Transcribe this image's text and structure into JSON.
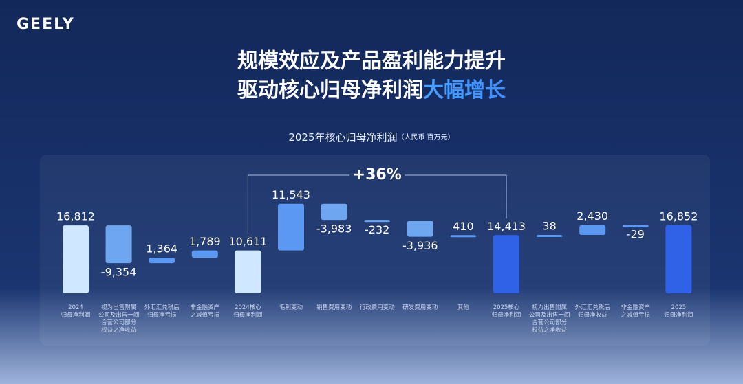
{
  "logo": "GEELY",
  "headline": {
    "line1": "规模效应及产品盈利能力提升",
    "line2": "驱动核心归母净利润",
    "highlight": "大幅增长"
  },
  "chart_data": {
    "type": "waterfall",
    "title": "2025年核心归母净利润",
    "unit": "（人民币 百万元）",
    "categories": [
      [
        "2024",
        "归母净利润"
      ],
      [
        "视为出售附属",
        "公司及出售一间",
        "合营公司部分",
        "权益之净收益"
      ],
      [
        "外汇汇兑税后",
        "归母净亏损"
      ],
      [
        "非金融资产",
        "之减值亏损"
      ],
      [
        "2024核心",
        "归母净利润"
      ],
      [
        "毛利变动"
      ],
      [
        "销售费用变动"
      ],
      [
        "行政费用变动"
      ],
      [
        "研发费用变动"
      ],
      [
        "其他"
      ],
      [
        "2025核心",
        "归母净利润"
      ],
      [
        "视为出售附属",
        "公司及出售一间",
        "合营公司部分",
        "权益之净收益"
      ],
      [
        "外汇汇兑税后",
        "归母净收益"
      ],
      [
        "非金融资产",
        "之减值亏损"
      ],
      [
        "2025",
        "归母净利润"
      ]
    ],
    "measure": [
      "total",
      "relative",
      "relative",
      "relative",
      "total",
      "relative",
      "relative",
      "relative",
      "relative",
      "relative",
      "total",
      "relative",
      "relative",
      "relative",
      "total"
    ],
    "values": [
      16812,
      -9354,
      1364,
      1789,
      10611,
      11543,
      -3983,
      -232,
      -3936,
      410,
      14413,
      38,
      2430,
      -29,
      16852
    ],
    "value_labels": [
      "16,812",
      "-9,354",
      "1,364",
      "1,789",
      "10,611",
      "11,543",
      "-3,983",
      "-232",
      "-3,936",
      "410",
      "14,413",
      "38",
      "2,430",
      "-29",
      "16,852"
    ],
    "colors": [
      "#cfe8ff",
      "#6fa6f0",
      "#5b98f2",
      "#5b98f2",
      "#cfe8ff",
      "#5b98f2",
      "#6fa6f0",
      "#6fa6f0",
      "#6fa6f0",
      "#5b98f2",
      "#2f62e6",
      "#5b98f2",
      "#5b98f2",
      "#5b98f2",
      "#2f62e6"
    ],
    "ylim": [
      0,
      25000
    ],
    "annotation": {
      "text": "+36%",
      "from": 4,
      "to": 10
    }
  }
}
